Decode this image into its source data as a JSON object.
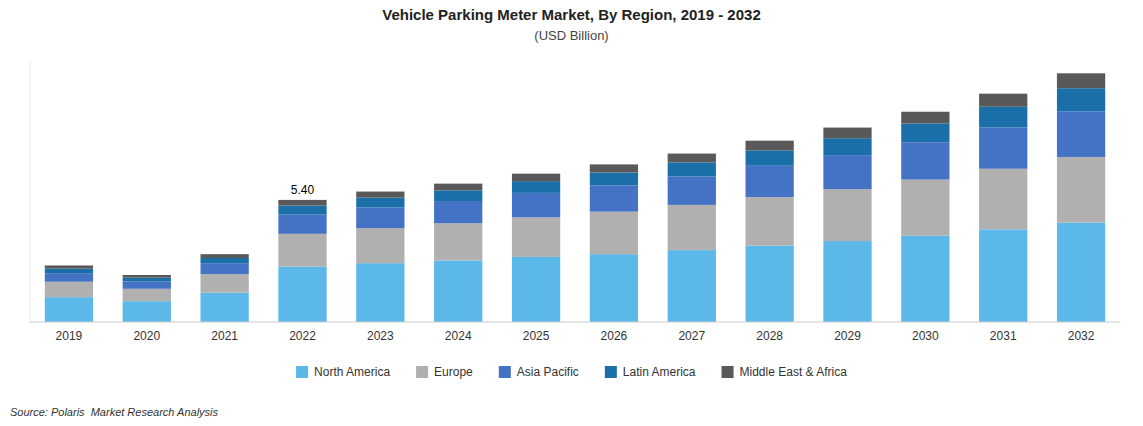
{
  "chart_data": {
    "type": "bar",
    "stacked": true,
    "title": "Vehicle Parking Meter Market, By Region, 2019 - 2032",
    "subtitle": "(USD Billion)",
    "categories": [
      "2019",
      "2020",
      "2021",
      "2022",
      "2023",
      "2024",
      "2025",
      "2026",
      "2027",
      "2028",
      "2029",
      "2030",
      "2031",
      "2032"
    ],
    "series": [
      {
        "name": "North America",
        "color": "#5BB8E8",
        "values": [
          1.1,
          0.92,
          1.3,
          2.45,
          2.6,
          2.72,
          2.88,
          3.0,
          3.18,
          3.38,
          3.58,
          3.82,
          4.1,
          4.4
        ]
      },
      {
        "name": "Europe",
        "color": "#B0B0B0",
        "values": [
          0.68,
          0.55,
          0.82,
          1.45,
          1.55,
          1.65,
          1.75,
          1.88,
          2.0,
          2.15,
          2.3,
          2.48,
          2.68,
          2.9
        ]
      },
      {
        "name": "Asia Pacific",
        "color": "#4472C4",
        "values": [
          0.38,
          0.32,
          0.48,
          0.85,
          0.92,
          0.98,
          1.08,
          1.16,
          1.26,
          1.38,
          1.5,
          1.65,
          1.82,
          2.02
        ]
      },
      {
        "name": "Latin America",
        "color": "#1B6FA8",
        "values": [
          0.2,
          0.17,
          0.23,
          0.4,
          0.43,
          0.47,
          0.52,
          0.57,
          0.62,
          0.68,
          0.75,
          0.83,
          0.92,
          1.02
        ]
      },
      {
        "name": "Middle East & Africa",
        "color": "#595959",
        "values": [
          0.14,
          0.12,
          0.17,
          0.25,
          0.27,
          0.3,
          0.33,
          0.36,
          0.39,
          0.43,
          0.47,
          0.52,
          0.58,
          0.66
        ]
      }
    ],
    "annotations": [
      {
        "text": "5.40",
        "x": "2022",
        "y": 5.4
      }
    ],
    "source": "Source: Polaris  Market Research Analysis",
    "ylim": [
      0,
      11.5
    ],
    "grid": false,
    "legend": "bottom",
    "tick_labels": "x"
  }
}
